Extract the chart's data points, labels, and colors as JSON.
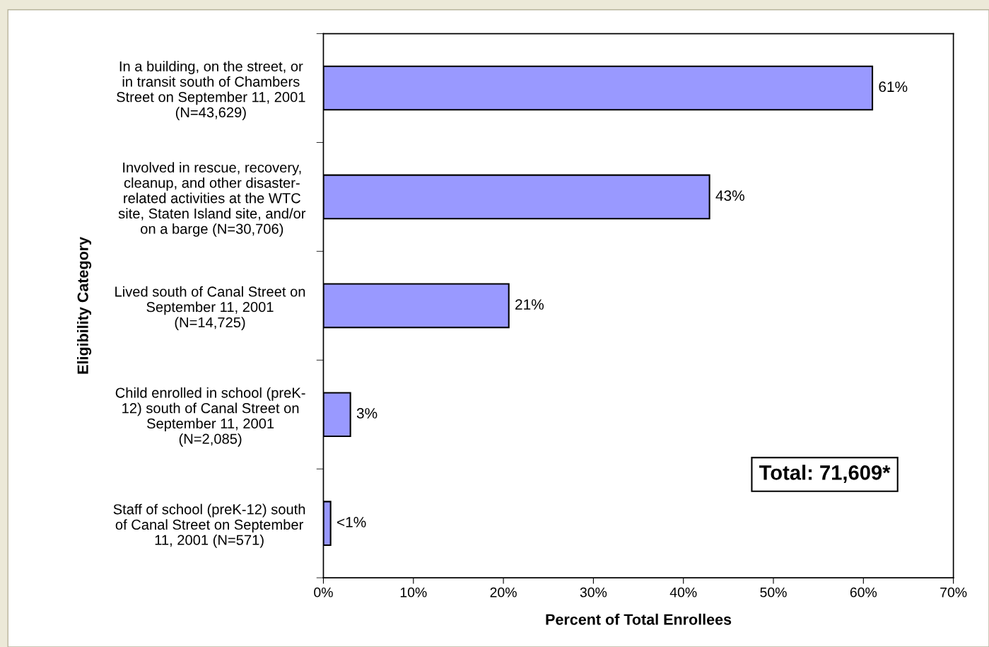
{
  "chart_data": {
    "type": "bar",
    "orientation": "horizontal",
    "categories": [
      "In a building, on the street, or\nin transit south of Chambers\nStreet on September 11, 2001\n(N=43,629)",
      "Involved in rescue, recovery,\ncleanup, and other disaster-\nrelated activities at the WTC\nsite, Staten Island site, and/or\non a barge (N=30,706)",
      "Lived south of Canal Street on\nSeptember 11, 2001\n(N=14,725)",
      "Child enrolled in school (preK-\n12) south of Canal Street on\nSeptember 11, 2001\n(N=2,085)",
      "Staff of school (preK-12) south\nof Canal Street on September\n11, 2001 (N=571)"
    ],
    "values": [
      61,
      42.9,
      20.6,
      3.0,
      0.8
    ],
    "value_labels": [
      "61%",
      "43%",
      "21%",
      "3%",
      "<1%"
    ],
    "color": "#9999ff",
    "xlabel": "Percent of Total Enrollees",
    "ylabel": "Eligibility Category",
    "xlim": [
      0,
      70
    ],
    "xticks": [
      {
        "value": 0,
        "label": "0%"
      },
      {
        "value": 10,
        "label": "10%"
      },
      {
        "value": 20,
        "label": "20%"
      },
      {
        "value": 30,
        "label": "30%"
      },
      {
        "value": 40,
        "label": "40%"
      },
      {
        "value": 50,
        "label": "50%"
      },
      {
        "value": 60,
        "label": "60%"
      },
      {
        "value": 70,
        "label": "70%"
      }
    ],
    "annotations": [
      "Total: 71,609*"
    ],
    "grid": false
  }
}
